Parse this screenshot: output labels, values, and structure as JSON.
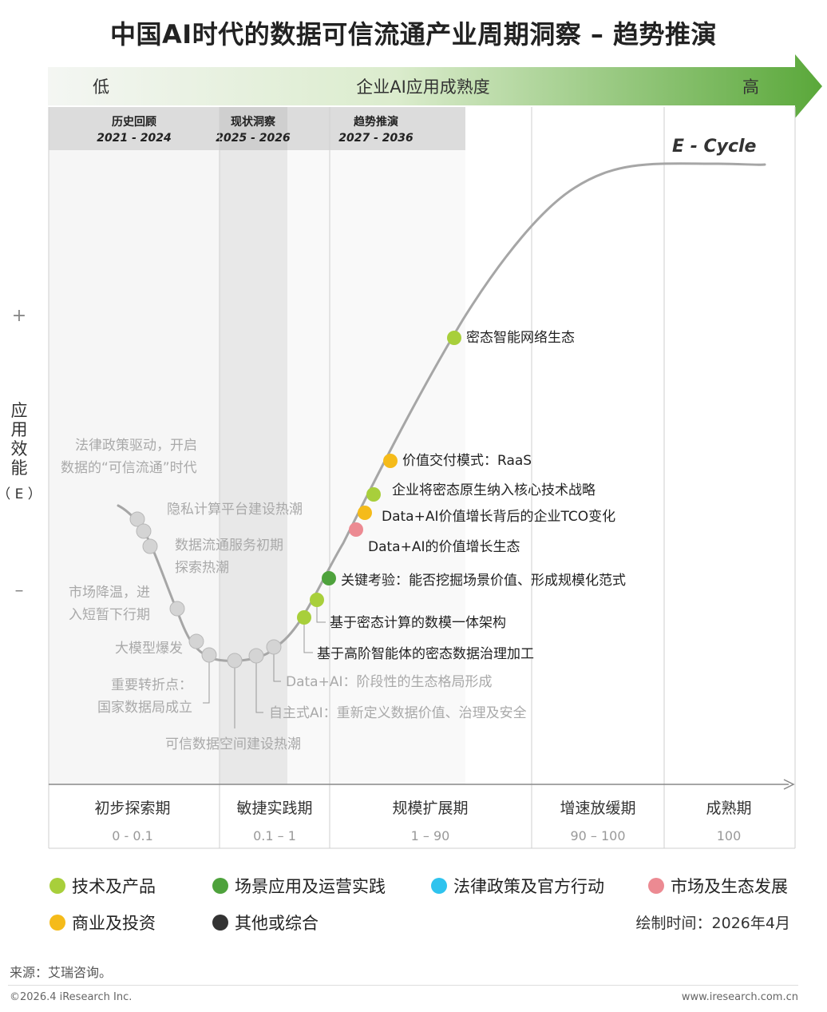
{
  "title": "中国AI时代的数据可信流通产业周期洞察 – 趋势推演",
  "maturity_axis": {
    "low": "低",
    "label": "企业AI应用成熟度",
    "high": "高"
  },
  "periods": [
    {
      "name": "历史回顾",
      "years": "2021 - 2024"
    },
    {
      "name": "现状洞察",
      "years": "2025 - 2026"
    },
    {
      "name": "趋势推演",
      "years": "2027 - 2036"
    }
  ],
  "curve_label": "E - Cycle",
  "y_axis": {
    "plus": "+",
    "minus": "–",
    "label_chars": [
      "应",
      "用",
      "效",
      "能"
    ],
    "label_symbol": "（ E ）"
  },
  "phases": [
    {
      "name": "初步探索期",
      "range": "0 - 0.1"
    },
    {
      "name": "敏捷实践期",
      "range": "0.1 – 1"
    },
    {
      "name": "规模扩展期",
      "range": "1 – 90"
    },
    {
      "name": "增速放缓期",
      "range": "90 – 100"
    },
    {
      "name": "成熟期",
      "range": "100"
    }
  ],
  "events": [
    {
      "line1": "法律政策驱动，开启",
      "line2": "数据的“可信流通”时代",
      "category": "past",
      "color": "#d0d0d0"
    },
    {
      "line1": "隐私计算平台建设热潮",
      "category": "past",
      "color": "#d0d0d0"
    },
    {
      "line1": "数据流通服务初期",
      "line2": "探索热潮",
      "category": "past",
      "color": "#d0d0d0"
    },
    {
      "line1": "市场降温，进",
      "line2": "入短暂下行期",
      "category": "past",
      "color": "#d0d0d0"
    },
    {
      "line1": "大模型爆发",
      "category": "past",
      "color": "#d0d0d0"
    },
    {
      "line1": "重要转折点：",
      "line2": "国家数据局成立",
      "category": "past",
      "color": "#d0d0d0"
    },
    {
      "line1": "可信数据空间建设热潮",
      "category": "past",
      "color": "#d0d0d0"
    },
    {
      "line1": "自主式AI：重新定义数据价值、治理及安全",
      "category": "past",
      "color": "#d0d0d0"
    },
    {
      "line1": "Data+AI：阶段性的生态格局形成",
      "category": "past",
      "color": "#d0d0d0"
    },
    {
      "line1": "基于高阶智能体的密态数据治理加工",
      "category": "技术及产品",
      "color": "#a8cf3b"
    },
    {
      "line1": "基于密态计算的数模一体架构",
      "category": "技术及产品",
      "color": "#a8cf3b"
    },
    {
      "line1": "关键考验：能否挖掘场景价值、形成规模化范式",
      "category": "场景应用及运营实践",
      "color": "#4ea23c"
    },
    {
      "line1": "Data+AI的价值增长生态",
      "category": "市场及生态发展",
      "color": "#ec8a92"
    },
    {
      "line1": "Data+AI价值增长背后的企业TCO变化",
      "category": "商业及投资",
      "color": "#f5bb1a"
    },
    {
      "line1": "企业将密态原生纳入核心技术战略",
      "category": "技术及产品",
      "color": "#a8cf3b"
    },
    {
      "line1": "价值交付模式：RaaS",
      "category": "商业及投资",
      "color": "#f5bb1a"
    },
    {
      "line1": "密态智能网络生态",
      "category": "技术及产品",
      "color": "#a8cf3b"
    }
  ],
  "legend": [
    {
      "label": "技术及产品",
      "color": "#a8cf3b"
    },
    {
      "label": "场景应用及运营实践",
      "color": "#4ea23c"
    },
    {
      "label": "法律政策及官方行动",
      "color": "#2fc3ee"
    },
    {
      "label": "市场及生态发展",
      "color": "#ec8a92"
    },
    {
      "label": "商业及投资",
      "color": "#f5bb1a"
    },
    {
      "label": "其他或综合",
      "color": "#333333"
    }
  ],
  "draw_date": "绘制时间：2026年4月",
  "source": "来源：艾瑞咨询。",
  "copyright": "©2026.4 iResearch Inc.",
  "website": "www.iresearch.com.cn"
}
